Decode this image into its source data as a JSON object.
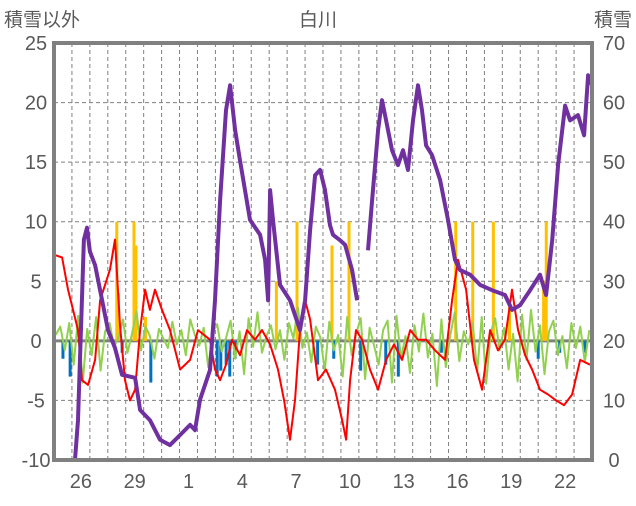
{
  "chart_data": {
    "type": "line",
    "title": "白川",
    "ylabel_left": "積雪以外",
    "ylabel_right": "積雪",
    "ylim_left": [
      -10,
      25
    ],
    "ylim_right": [
      0,
      70
    ],
    "yticks_left": [
      "25",
      "20",
      "15",
      "10",
      "5",
      "0",
      "-5",
      "-10"
    ],
    "yticks_right": [
      "70",
      "60",
      "50",
      "40",
      "30",
      "20",
      "10",
      "0"
    ],
    "xlim_days": [
      0,
      30
    ],
    "xticks": [
      {
        "label": "26",
        "day": 1.5
      },
      {
        "label": "29",
        "day": 4.5
      },
      {
        "label": "1",
        "day": 7.5
      },
      {
        "label": "4",
        "day": 10.5
      },
      {
        "label": "7",
        "day": 13.5
      },
      {
        "label": "10",
        "day": 16.5
      },
      {
        "label": "13",
        "day": 19.5
      },
      {
        "label": "16",
        "day": 22.5
      },
      {
        "label": "19",
        "day": 25.5
      },
      {
        "label": "22",
        "day": 28.5
      }
    ],
    "grid": true,
    "colors": {
      "snow": "#7030A0",
      "red": "#FF0000",
      "green": "#92D050",
      "yellow": "#FFC000",
      "blue": "#0070C0",
      "axis": "#808080",
      "grid": "#808080"
    },
    "series": [
      {
        "name": "snow_depth",
        "axis": "right",
        "color": "#7030A0",
        "points": [
          [
            0,
            0
          ],
          [
            1.17,
            0
          ],
          [
            1.34,
            6.7
          ],
          [
            1.67,
            37
          ],
          [
            1.84,
            39
          ],
          [
            2.0,
            35
          ],
          [
            2.29,
            32.7
          ],
          [
            2.57,
            28.5
          ],
          [
            3.01,
            21.8
          ],
          [
            3.4,
            18.8
          ],
          [
            3.79,
            14.3
          ],
          [
            4.52,
            13.8
          ],
          [
            4.8,
            8.4
          ],
          [
            5.35,
            6.7
          ],
          [
            5.91,
            3.4
          ],
          [
            6.47,
            2.5
          ],
          [
            7.03,
            4.2
          ],
          [
            7.59,
            5.9
          ],
          [
            7.86,
            5
          ],
          [
            8.14,
            10.1
          ],
          [
            8.7,
            15.1
          ],
          [
            8.98,
            26.8
          ],
          [
            9.26,
            43.6
          ],
          [
            9.59,
            58.7
          ],
          [
            9.82,
            62.9
          ],
          [
            10.1,
            55.4
          ],
          [
            10.37,
            50.3
          ],
          [
            10.93,
            40.3
          ],
          [
            11.49,
            37.8
          ],
          [
            11.77,
            33.6
          ],
          [
            11.94,
            26.8
          ],
          [
            12.05,
            45.3
          ],
          [
            12.21,
            40.3
          ],
          [
            12.6,
            29.4
          ],
          [
            13.16,
            26.8
          ],
          [
            13.72,
            21.8
          ],
          [
            14.0,
            26.8
          ],
          [
            14.28,
            38.6
          ],
          [
            14.56,
            47.8
          ],
          [
            14.84,
            48.7
          ],
          [
            15.11,
            45.3
          ],
          [
            15.39,
            39.4
          ],
          [
            15.56,
            37.8
          ],
          [
            15.95,
            36.9
          ],
          [
            16.23,
            36.1
          ],
          [
            16.62,
            31.9
          ],
          [
            16.9,
            26.8
          ],
          null,
          [
            17.51,
            35.2
          ],
          [
            17.74,
            43.6
          ],
          [
            18.07,
            55.4
          ],
          [
            18.29,
            60.4
          ],
          [
            18.52,
            57
          ],
          [
            18.85,
            52
          ],
          [
            19.18,
            49.5
          ],
          [
            19.46,
            52
          ],
          [
            19.74,
            48.7
          ],
          [
            20.02,
            57
          ],
          [
            20.3,
            62.9
          ],
          [
            20.52,
            58.7
          ],
          [
            20.75,
            52.8
          ],
          [
            21.08,
            51.2
          ],
          [
            21.53,
            47
          ],
          [
            21.97,
            40.3
          ],
          [
            22.36,
            33.6
          ],
          [
            22.64,
            31.9
          ],
          [
            23.2,
            31.1
          ],
          [
            23.76,
            29.4
          ],
          [
            24.43,
            28.5
          ],
          [
            25.15,
            27.7
          ],
          [
            25.54,
            25.2
          ],
          [
            25.99,
            26
          ],
          [
            26.55,
            28.5
          ],
          [
            27.1,
            31.1
          ],
          [
            27.44,
            27.7
          ],
          [
            27.78,
            36.9
          ],
          [
            28.11,
            49.5
          ],
          [
            28.5,
            59.5
          ],
          [
            28.78,
            57
          ],
          [
            29.22,
            57.9
          ],
          [
            29.56,
            54.5
          ],
          [
            29.78,
            64.6
          ],
          [
            30,
            62.9
          ]
        ]
      },
      {
        "name": "red_series",
        "axis": "left",
        "color": "#FF0000",
        "points": [
          [
            0.06,
            7.2
          ],
          [
            0.45,
            7.0
          ],
          [
            0.78,
            4.3
          ],
          [
            1.0,
            3.0
          ],
          [
            1.34,
            0.9
          ],
          [
            1.56,
            -3.3
          ],
          [
            1.9,
            -3.7
          ],
          [
            2.29,
            -1.6
          ],
          [
            2.57,
            3.4
          ],
          [
            3.12,
            6.0
          ],
          [
            3.4,
            8.5
          ],
          [
            3.68,
            1.3
          ],
          [
            3.96,
            -3.3
          ],
          [
            4.24,
            -5.0
          ],
          [
            4.52,
            -4.1
          ],
          [
            4.8,
            0.9
          ],
          [
            5.08,
            4.3
          ],
          [
            5.35,
            2.6
          ],
          [
            5.63,
            4.3
          ],
          [
            6.02,
            2.6
          ],
          [
            6.47,
            0.9
          ],
          [
            7.03,
            -2.4
          ],
          [
            7.59,
            -1.6
          ],
          [
            8.03,
            0.9
          ],
          [
            8.7,
            0.1
          ],
          [
            8.98,
            -2.4
          ],
          [
            9.26,
            -3.3
          ],
          [
            9.59,
            -2.0
          ],
          [
            9.93,
            0.1
          ],
          [
            10.37,
            -1.2
          ],
          [
            10.76,
            0.9
          ],
          [
            11.21,
            0.1
          ],
          [
            11.6,
            0.9
          ],
          [
            12.05,
            -0.3
          ],
          [
            12.49,
            -2.4
          ],
          [
            12.83,
            -5.0
          ],
          [
            13.16,
            -8.3
          ],
          [
            13.44,
            -5.0
          ],
          [
            13.72,
            0.9
          ],
          [
            14.0,
            3.4
          ],
          [
            14.28,
            1.8
          ],
          [
            14.72,
            -3.3
          ],
          [
            15.17,
            -2.4
          ],
          [
            15.67,
            -4.1
          ],
          [
            16.06,
            -6.6
          ],
          [
            16.29,
            -8.3
          ],
          [
            16.51,
            -3.3
          ],
          [
            16.84,
            0.9
          ],
          [
            17.18,
            0.1
          ],
          [
            17.62,
            -2.4
          ],
          [
            18.07,
            -4.1
          ],
          [
            18.52,
            -1.6
          ],
          [
            18.96,
            -0.3
          ],
          [
            19.41,
            -1.6
          ],
          [
            19.86,
            0.9
          ],
          [
            20.3,
            0.1
          ],
          [
            20.75,
            0.1
          ],
          [
            21.25,
            -0.8
          ],
          [
            21.81,
            -1.6
          ],
          [
            22.2,
            3.4
          ],
          [
            22.53,
            6.8
          ],
          [
            22.98,
            4.3
          ],
          [
            23.42,
            -1.6
          ],
          [
            23.87,
            -4.1
          ],
          [
            24.32,
            0.9
          ],
          [
            24.76,
            -0.8
          ],
          [
            25.15,
            0.1
          ],
          [
            25.54,
            4.3
          ],
          [
            25.88,
            0.9
          ],
          [
            26.27,
            -1.2
          ],
          [
            26.66,
            -2.4
          ],
          [
            27.1,
            -4.1
          ],
          [
            27.55,
            -4.5
          ],
          [
            28.0,
            -5.0
          ],
          [
            28.44,
            -5.4
          ],
          [
            28.89,
            -4.5
          ],
          [
            29.34,
            -1.6
          ],
          [
            29.89,
            -2.0
          ]
        ]
      },
      {
        "name": "green_series",
        "axis": "left",
        "color": "#92D050",
        "step_days": 0.25,
        "values": [
          0.5,
          1.2,
          -0.8,
          1.5,
          -2.0,
          2.1,
          -3.5,
          1.0,
          -1.2,
          2.0,
          -2.5,
          0.8,
          1.5,
          -0.5,
          0.3,
          1.8,
          -1.0,
          0.6,
          2.5,
          -0.8,
          1.2,
          0.4,
          -1.5,
          1.0,
          0.2,
          -0.6,
          1.6,
          -0.3,
          0.9,
          -1.2,
          1.8,
          0.5,
          -0.4,
          1.1,
          -2.2,
          0.7,
          1.4,
          -0.9,
          0.3,
          1.7,
          -1.5,
          0.8,
          -2.8,
          1.9,
          -0.5,
          2.4,
          -1.0,
          0.4,
          1.3,
          -0.7,
          0.9,
          -1.6,
          1.5,
          0.2,
          2.8,
          -0.6,
          0.7,
          -1.8,
          1.2,
          0.3,
          -2.5,
          1.6,
          -0.8,
          0.5,
          -3.0,
          2.0,
          -1.2,
          0.6,
          1.9,
          -3.2,
          1.1,
          -0.4,
          -2.0,
          0.9,
          1.7,
          -3.5,
          2.1,
          -1.5,
          0.4,
          -2.7,
          1.3,
          -0.9,
          2.3,
          -1.4,
          0.6,
          -3.8,
          1.8,
          -2.2,
          0.5,
          2.4,
          -1.7,
          0.8,
          -0.3,
          1.5,
          -2.6,
          2.0,
          -3.6,
          0.7,
          1.9,
          -0.8,
          1.1,
          -2.4,
          0.6,
          -3.4,
          2.2,
          -1.6,
          2.6,
          -0.9,
          1.3,
          -2.8,
          0.8,
          1.7,
          -1.2,
          0.4,
          -2.3,
          1.5,
          -0.6,
          1.2,
          -1.8,
          0.9
        ]
      },
      {
        "name": "yellow_bars",
        "axis": "left",
        "color": "#FFC000",
        "type": "bar",
        "bars": [
          [
            3.5,
            10
          ],
          [
            3.6,
            4
          ],
          [
            4.46,
            10
          ],
          [
            4.57,
            8
          ],
          [
            5.1,
            2
          ],
          [
            12.4,
            5
          ],
          [
            13.55,
            10
          ],
          [
            15.5,
            8
          ],
          [
            16.45,
            10
          ],
          [
            22.4,
            10
          ],
          [
            23.35,
            10
          ],
          [
            24.5,
            10
          ],
          [
            25.4,
            3
          ],
          [
            27.3,
            5
          ],
          [
            27.45,
            10
          ]
        ]
      },
      {
        "name": "blue_bars",
        "axis": "left",
        "color": "#0070C0",
        "type": "bar",
        "bars": [
          [
            0.5,
            -1.5
          ],
          [
            0.9,
            -3
          ],
          [
            3.8,
            -1
          ],
          [
            5.4,
            -3.5
          ],
          [
            9.1,
            -3
          ],
          [
            9.3,
            -2.5
          ],
          [
            9.6,
            -2
          ],
          [
            9.8,
            -3
          ],
          [
            10.1,
            -1.5
          ],
          [
            14.7,
            -2
          ],
          [
            15.6,
            -1.5
          ],
          [
            17.1,
            -2.5
          ],
          [
            18.5,
            -2
          ],
          [
            19.2,
            -3
          ],
          [
            21.6,
            -1
          ],
          [
            27.0,
            -1.5
          ],
          [
            28.2,
            -1
          ],
          [
            29.6,
            -1
          ]
        ]
      }
    ]
  }
}
